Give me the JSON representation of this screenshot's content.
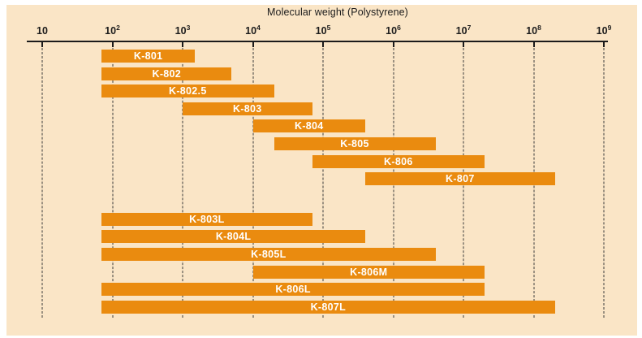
{
  "title": "Molecular weight (Polystyrene)",
  "colors": {
    "background": "#ffffff",
    "panel": "#fae5c6",
    "bar": "#ea8b0f",
    "bar_label": "#ffffff",
    "ink": "#1b1b1b",
    "grid": "#3a3a3a"
  },
  "chart_data": {
    "type": "bar",
    "subtype": "horizontal-range-bars",
    "title": "Molecular weight (Polystyrene)",
    "xlabel": "Molecular weight (Polystyrene)",
    "ylabel": "",
    "xscale": "log",
    "xlim": [
      10,
      1000000000
    ],
    "grid": "vertical-dashed-at-decades",
    "legend": "none",
    "axis_ticks": [
      {
        "base": "10",
        "sup": "",
        "value": 10
      },
      {
        "base": "10",
        "sup": "2",
        "value": 100
      },
      {
        "base": "10",
        "sup": "3",
        "value": 1000
      },
      {
        "base": "10",
        "sup": "4",
        "value": 10000
      },
      {
        "base": "10",
        "sup": "5",
        "value": 100000
      },
      {
        "base": "10",
        "sup": "6",
        "value": 1000000
      },
      {
        "base": "10",
        "sup": "7",
        "value": 10000000
      },
      {
        "base": "10",
        "sup": "8",
        "value": 100000000
      },
      {
        "base": "10",
        "sup": "9",
        "value": 1000000000
      }
    ],
    "series": [
      {
        "name": "K-801",
        "group": "A",
        "range_min": 70,
        "range_max": 1500
      },
      {
        "name": "K-802",
        "group": "A",
        "range_min": 70,
        "range_max": 5000
      },
      {
        "name": "K-802.5",
        "group": "A",
        "range_min": 70,
        "range_max": 20000
      },
      {
        "name": "K-803",
        "group": "A",
        "range_min": 1000,
        "range_max": 70000
      },
      {
        "name": "K-804",
        "group": "A",
        "range_min": 10000,
        "range_max": 400000
      },
      {
        "name": "K-805",
        "group": "A",
        "range_min": 20000,
        "range_max": 4000000
      },
      {
        "name": "K-806",
        "group": "A",
        "range_min": 70000,
        "range_max": 20000000
      },
      {
        "name": "K-807",
        "group": "A",
        "range_min": 400000,
        "range_max": 200000000
      },
      {
        "name": "K-803L",
        "group": "B",
        "range_min": 70,
        "range_max": 70000
      },
      {
        "name": "K-804L",
        "group": "B",
        "range_min": 70,
        "range_max": 400000
      },
      {
        "name": "K-805L",
        "group": "B",
        "range_min": 70,
        "range_max": 4000000
      },
      {
        "name": "K-806M",
        "group": "B",
        "range_min": 10000,
        "range_max": 20000000
      },
      {
        "name": "K-806L",
        "group": "B",
        "range_min": 70,
        "range_max": 20000000
      },
      {
        "name": "K-807L",
        "group": "B",
        "range_min": 70,
        "range_max": 200000000
      }
    ]
  }
}
